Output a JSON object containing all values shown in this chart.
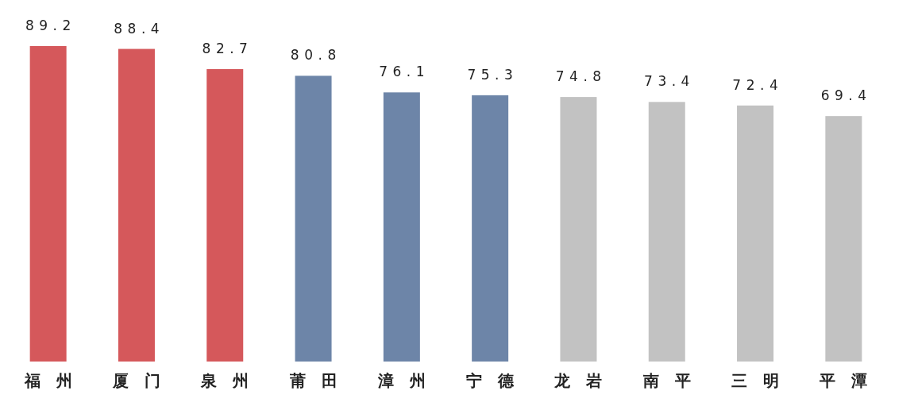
{
  "chart_data": {
    "type": "bar",
    "categories": [
      "福州",
      "厦门",
      "泉州",
      "莆田",
      "漳州",
      "宁德",
      "龙岩",
      "南平",
      "三明",
      "平潭"
    ],
    "values": [
      89.2,
      88.4,
      82.7,
      80.8,
      76.1,
      75.3,
      74.8,
      73.4,
      72.4,
      69.4
    ],
    "colors": [
      "#d5585b",
      "#d5585b",
      "#d5585b",
      "#6d85a8",
      "#6d85a8",
      "#6d85a8",
      "#c2c2c2",
      "#c2c2c2",
      "#c2c2c2",
      "#c2c2c2"
    ],
    "data_labels": true
  }
}
